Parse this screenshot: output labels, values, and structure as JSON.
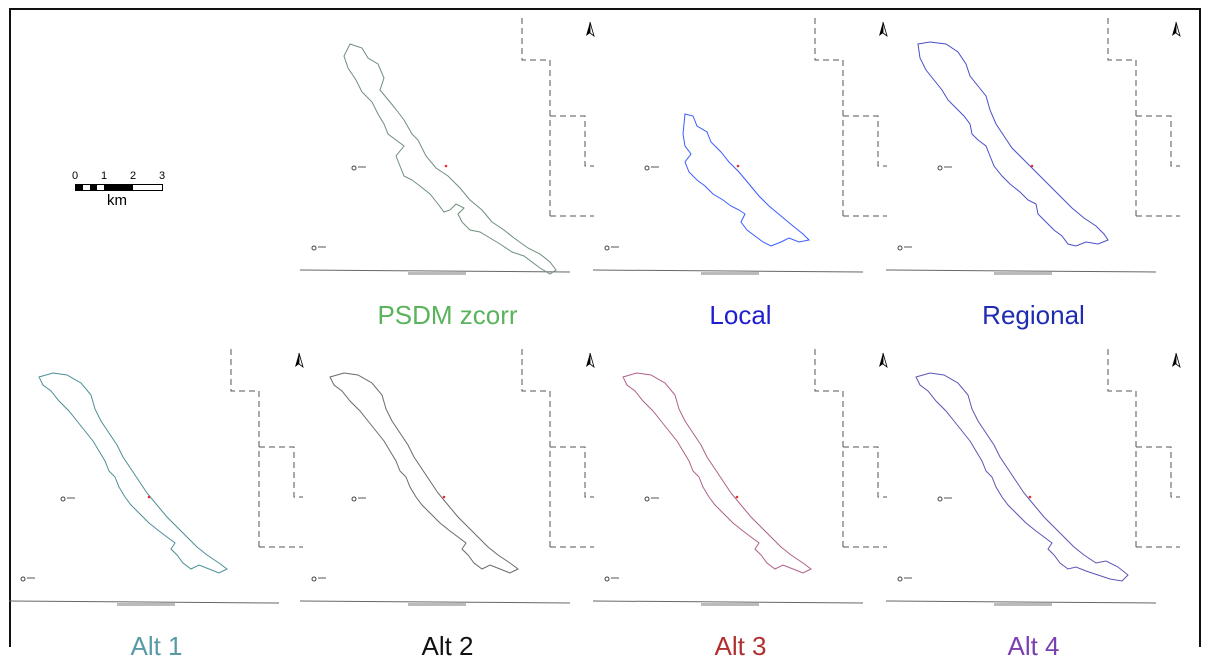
{
  "scale_bar": {
    "ticks": [
      "0",
      "1",
      "2",
      "3"
    ],
    "unit": "km"
  },
  "panels": [
    {
      "id": "psdm",
      "label": "PSDM zcorr",
      "color": "#5bb35b",
      "outline_color": "#6f8f7a"
    },
    {
      "id": "local",
      "label": "Local",
      "color": "#1f1fd1",
      "outline_color": "#3a5cff"
    },
    {
      "id": "regional",
      "label": "Regional",
      "color": "#1f2bb0",
      "outline_color": "#4a4fc9"
    },
    {
      "id": "alt1",
      "label": "Alt 1",
      "color": "#5a9aa6",
      "outline_color": "#4d8f97"
    },
    {
      "id": "alt2",
      "label": "Alt 2",
      "color": "#111111",
      "outline_color": "#6a6a6a"
    },
    {
      "id": "alt3",
      "label": "Alt 3",
      "color": "#b03030",
      "outline_color": "#b0608a"
    },
    {
      "id": "alt4",
      "label": "Alt 4",
      "color": "#7a3fb0",
      "outline_color": "#5a55b5"
    }
  ],
  "north_arrow": {
    "label": "N"
  },
  "point_marker_color": "#e03030"
}
